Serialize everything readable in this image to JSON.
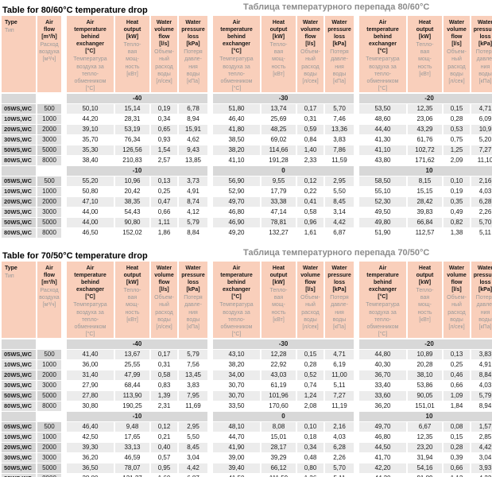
{
  "colors": {
    "header_bg": "#f9cfbb",
    "band_bg": "#d8d8d8",
    "row_label_bg_odd": "#d4d4d4",
    "row_label_bg_even": "#e1e1e1",
    "row_value_bg_odd": "#ececec",
    "row_value_bg_even": "#ffffff",
    "ru_text": "#9a9a9a",
    "en_text": "#151515"
  },
  "columns": {
    "type": {
      "en": "Type",
      "ru": "Тип"
    },
    "air_flow": {
      "en": "Air\nflow\n[m³/h]",
      "ru": "Расход\nвоздуха\n[м³/ч]"
    },
    "groups": [
      {
        "id": "air-temp-behind-exchanger",
        "en": "Air\ntemperature\nbehind\nexchanger\n[°C]",
        "ru": "Температура\nвоздуха за\nтепло-\nобменником\n[°C]"
      },
      {
        "id": "heat-output",
        "en": "Heat\noutput\n[kW]",
        "ru": "Тепло-\nвая\nмощ-\nность\n[кВт]"
      },
      {
        "id": "water-volume-flow",
        "en": "Water\nvolume\nflow\n[l/s]",
        "ru": "Объем-\nный\nрасход\nводы\n[л/сек]"
      },
      {
        "id": "water-pressure-loss",
        "en": "Water\npressure\nloss\n[kPa]",
        "ru": "Потеря\nдавле-\nния\nводы\n[кПа]"
      }
    ]
  },
  "tables": [
    {
      "title_en": "Table for 80/60°C temperature drop",
      "title_ru": "Таблица температурного перепада 80/60°С",
      "sections": [
        {
          "temps": [
            "-40",
            "-30",
            "-20"
          ],
          "rows": [
            {
              "type": "05WS,WC",
              "flow": "500",
              "values": [
                "50,10",
                "15,14",
                "0,19",
                "6,78",
                "51,80",
                "13,74",
                "0,17",
                "5,70",
                "53,50",
                "12,35",
                "0,15",
                "4,71"
              ]
            },
            {
              "type": "10WS,WC",
              "flow": "1000",
              "values": [
                "44,20",
                "28,31",
                "0,34",
                "8,94",
                "46,40",
                "25,69",
                "0,31",
                "7,46",
                "48,60",
                "23,06",
                "0,28",
                "6,09"
              ]
            },
            {
              "type": "20WS,WC",
              "flow": "2000",
              "values": [
                "39,10",
                "53,19",
                "0,65",
                "15,91",
                "41,80",
                "48,25",
                "0,59",
                "13,36",
                "44,40",
                "43,29",
                "0,53",
                "10,9"
              ]
            },
            {
              "type": "30WS,WC",
              "flow": "3000",
              "values": [
                "35,70",
                "76,34",
                "0,93",
                "4,62",
                "38,50",
                "69,02",
                "0,84",
                "3,83",
                "41,30",
                "61,76",
                "0,75",
                "5,20"
              ]
            },
            {
              "type": "50WS,WC",
              "flow": "5000",
              "values": [
                "35,30",
                "126,56",
                "1,54",
                "9,43",
                "38,20",
                "114,66",
                "1,40",
                "7,86",
                "41,10",
                "102,72",
                "1,25",
                "7,27"
              ]
            },
            {
              "type": "80WS,WC",
              "flow": "8000",
              "values": [
                "38,40",
                "210,83",
                "2,57",
                "13,85",
                "41,10",
                "191,28",
                "2,33",
                "11,59",
                "43,80",
                "171,62",
                "2,09",
                "11,10"
              ]
            }
          ]
        },
        {
          "temps": [
            "-10",
            "0",
            "10"
          ],
          "rows": [
            {
              "type": "05WS,WC",
              "flow": "500",
              "values": [
                "55,20",
                "10,96",
                "0,13",
                "3,73",
                "56,90",
                "9,55",
                "0,12",
                "2,95",
                "58,50",
                "8,15",
                "0,10",
                "2,16"
              ]
            },
            {
              "type": "10WS,WC",
              "flow": "1000",
              "values": [
                "50,80",
                "20,42",
                "0,25",
                "4,91",
                "52,90",
                "17,79",
                "0,22",
                "5,50",
                "55,10",
                "15,15",
                "0,19",
                "4,03"
              ]
            },
            {
              "type": "20WS,WC",
              "flow": "2000",
              "values": [
                "47,10",
                "38,35",
                "0,47",
                "8,74",
                "49,70",
                "33,38",
                "0,41",
                "8,45",
                "52,30",
                "28,42",
                "0,35",
                "6,28"
              ]
            },
            {
              "type": "30WS,WC",
              "flow": "3000",
              "values": [
                "44,00",
                "54,43",
                "0,66",
                "4,12",
                "46,80",
                "47,14",
                "0,58",
                "3,14",
                "49,50",
                "39,83",
                "0,49",
                "2,26"
              ]
            },
            {
              "type": "50WS,WC",
              "flow": "5000",
              "values": [
                "44,00",
                "90,80",
                "1,11",
                "5,79",
                "46,90",
                "78,81",
                "0,96",
                "4,42",
                "49,80",
                "66,84",
                "0,82",
                "5,70"
              ]
            },
            {
              "type": "80WS,WC",
              "flow": "8000",
              "values": [
                "46,50",
                "152,02",
                "1,86",
                "8,84",
                "49,20",
                "132,27",
                "1,61",
                "6,87",
                "51,90",
                "112,57",
                "1,38",
                "5,11"
              ]
            }
          ]
        }
      ]
    },
    {
      "title_en": "Table for 70/50°C temperature drop",
      "title_ru": "Таблица температурного перепада 70/50°С",
      "sections": [
        {
          "temps": [
            "-40",
            "-30",
            "-20"
          ],
          "rows": [
            {
              "type": "05WS,WC",
              "flow": "500",
              "values": [
                "41,40",
                "13,67",
                "0,17",
                "5,79",
                "43,10",
                "12,28",
                "0,15",
                "4,71",
                "44,80",
                "10,89",
                "0,13",
                "3,83"
              ]
            },
            {
              "type": "10WS,WC",
              "flow": "1000",
              "values": [
                "36,00",
                "25,55",
                "0,31",
                "7,56",
                "38,20",
                "22,92",
                "0,28",
                "6,19",
                "40,30",
                "20,28",
                "0,25",
                "4,91"
              ]
            },
            {
              "type": "20WS,WC",
              "flow": "2000",
              "values": [
                "31,40",
                "47,99",
                "0,58",
                "13,45",
                "34,00",
                "43,03",
                "0,52",
                "11,00",
                "36,70",
                "38,10",
                "0,46",
                "8,84"
              ]
            },
            {
              "type": "30WS,WC",
              "flow": "3000",
              "values": [
                "27,90",
                "68,44",
                "0,83",
                "3,83",
                "30,70",
                "61,19",
                "0,74",
                "5,11",
                "33,40",
                "53,86",
                "0,66",
                "4,03"
              ]
            },
            {
              "type": "50WS,WC",
              "flow": "5000",
              "values": [
                "27,80",
                "113,90",
                "1,39",
                "7,95",
                "30,70",
                "101,96",
                "1,24",
                "7,27",
                "33,60",
                "90,05",
                "1,09",
                "5,79"
              ]
            },
            {
              "type": "80WS,WC",
              "flow": "8000",
              "values": [
                "30,80",
                "190,25",
                "2,31",
                "11,69",
                "33,50",
                "170,60",
                "2,08",
                "11,19",
                "36,20",
                "151,01",
                "1,84",
                "8,94"
              ]
            }
          ]
        },
        {
          "temps": [
            "-10",
            "0",
            "10"
          ],
          "rows": [
            {
              "type": "05WS,WC",
              "flow": "500",
              "values": [
                "46,40",
                "9,48",
                "0,12",
                "2,95",
                "48,10",
                "8,08",
                "0,10",
                "2,16",
                "49,70",
                "6,67",
                "0,08",
                "1,57"
              ]
            },
            {
              "type": "10WS,WC",
              "flow": "1000",
              "values": [
                "42,50",
                "17,65",
                "0,21",
                "5,50",
                "44,70",
                "15,01",
                "0,18",
                "4,03",
                "46,80",
                "12,35",
                "0,15",
                "2,85"
              ]
            },
            {
              "type": "20WS,WC",
              "flow": "2000",
              "values": [
                "39,30",
                "33,13",
                "0,40",
                "8,45",
                "41,90",
                "28,17",
                "0,34",
                "6,28",
                "44,50",
                "23,20",
                "0,28",
                "4,42"
              ]
            },
            {
              "type": "30WS,WC",
              "flow": "3000",
              "values": [
                "36,20",
                "46,59",
                "0,57",
                "3,04",
                "39,00",
                "39,29",
                "0,48",
                "2,26",
                "41,70",
                "31,94",
                "0,39",
                "3,04"
              ]
            },
            {
              "type": "50WS,WC",
              "flow": "5000",
              "values": [
                "36,50",
                "78,07",
                "0,95",
                "4,42",
                "39,40",
                "66,12",
                "0,80",
                "5,70",
                "42,20",
                "54,16",
                "0,66",
                "3,93"
              ]
            },
            {
              "type": "80WS,WC",
              "flow": "8000",
              "values": [
                "38,80",
                "131,27",
                "1,60",
                "6,87",
                "41,50",
                "111,59",
                "1,36",
                "5,11",
                "44,20",
                "91,89",
                "1,12",
                "4,22"
              ]
            }
          ]
        }
      ]
    }
  ]
}
